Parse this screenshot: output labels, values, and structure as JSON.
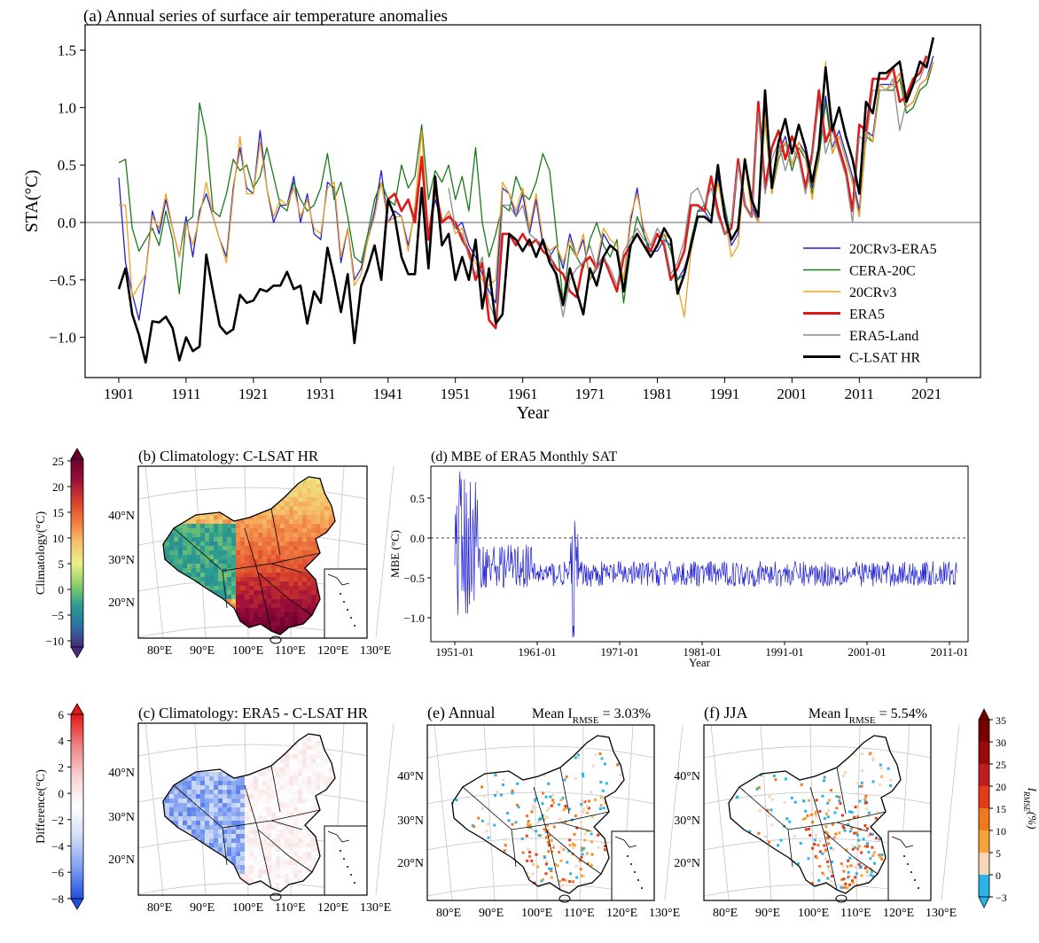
{
  "chart_data": [
    {
      "id": "a",
      "type": "line",
      "title": "(a) Annual series of surface air temperature anomalies",
      "xlabel": "Year",
      "ylabel": "STA(°C)",
      "xlim": [
        1896,
        2029
      ],
      "ylim": [
        -1.35,
        1.72
      ],
      "x_ticks": [
        "1901",
        "1911",
        "1921",
        "1931",
        "1941",
        "1951",
        "1961",
        "1971",
        "1981",
        "1991",
        "2001",
        "2011",
        "2021"
      ],
      "y_ticks": [
        "−1.0",
        "−0.5",
        "0.0",
        "0.5",
        "1.0",
        "1.5"
      ],
      "legend_position": "lower-right",
      "series": [
        {
          "name": "20CRv3-ERA5",
          "color": "#1f1fd6",
          "start": 1901,
          "values": [
            0.39,
            -0.35,
            -0.62,
            -0.85,
            -0.45,
            0.1,
            -0.1,
            0.2,
            -0.05,
            -0.3,
            0.05,
            -0.3,
            0.1,
            0.25,
            0.05,
            -0.15,
            -0.3,
            0.3,
            0.65,
            0.3,
            0.25,
            0.8,
            0.3,
            0.0,
            0.15,
            0.15,
            0.4,
            0.0,
            0.25,
            -0.1,
            -0.15,
            0.35,
            0.3,
            -0.35,
            -0.05,
            -0.5,
            -0.4,
            -0.15,
            0.1,
            0.45,
            0.0,
            0.1,
            0.05,
            -0.2,
            0.1,
            0.55,
            -0.1,
            0.2,
            0.0,
            0.1,
            -0.05,
            0.0,
            -0.2,
            -0.3,
            -0.45,
            -0.6,
            -0.7,
            0.3,
            0.25,
            0.05,
            0.25,
            -0.1,
            0.2,
            -0.2,
            -0.3,
            -0.2,
            -0.4,
            -0.1,
            -0.3,
            -0.15,
            -0.5,
            -0.4,
            -0.1,
            -0.2,
            -0.25,
            -0.5,
            0.0,
            0.3,
            -0.1,
            -0.25,
            -0.25,
            -0.15,
            -0.2,
            -0.5,
            -0.4,
            -0.2,
            0.1,
            0.1,
            0.0,
            0.4,
            0.1,
            -0.2,
            -0.1,
            0.55,
            0.15,
            0.0,
            1.0,
            0.3,
            0.6,
            0.75,
            0.5,
            0.7,
            0.6,
            0.3,
            0.6,
            1.1,
            0.65,
            0.8,
            0.6,
            0.4,
            0.1,
            0.8,
            0.75,
            1.2,
            1.2,
            1.2,
            1.3,
            1.0,
            1.05,
            1.2,
            1.25,
            1.45
          ]
        },
        {
          "name": "CERA-20C",
          "color": "#1a7a1a",
          "start": 1901,
          "values": [
            0.52,
            0.55,
            -0.05,
            -0.25,
            -0.15,
            -0.05,
            -0.2,
            0.1,
            -0.15,
            -0.62,
            0.0,
            0.05,
            1.04,
            0.75,
            0.1,
            0.05,
            0.25,
            0.55,
            0.45,
            0.5,
            0.3,
            0.4,
            0.65,
            0.4,
            0.15,
            0.1,
            0.35,
            0.2,
            0.1,
            0.15,
            0.3,
            0.6,
            0.2,
            0.35,
            0.05,
            -0.3,
            -0.35,
            -0.1,
            0.2,
            0.35,
            0.2,
            0.15,
            0.5,
            0.3,
            0.4,
            0.85,
            0.2,
            0.45,
            0.35,
            0.5,
            0.2,
            0.4,
            0.1,
            0.65,
            0.0,
            -0.3,
            -0.1,
            0.15,
            0.1,
            0.4,
            0.25,
            0.2,
            0.35,
            0.6,
            0.45,
            -0.1,
            -0.7,
            -0.2,
            -0.3,
            -0.4,
            -0.15,
            0.0,
            -0.2,
            -0.3,
            -0.15,
            -0.7,
            -0.25,
            0.05,
            -0.1,
            -0.3,
            -0.2,
            -0.1,
            -0.25,
            -0.5,
            -0.45,
            -0.15,
            0.1,
            0.15,
            0.05,
            0.45,
            0.15,
            -0.15,
            -0.05,
            0.5,
            0.2,
            0.05,
            0.9,
            0.25,
            0.55,
            0.7,
            0.45,
            0.65,
            0.55,
            0.25,
            0.55,
            1.05,
            0.6,
            0.75,
            0.55,
            0.35,
            0.05,
            0.75,
            0.7,
            1.15,
            1.15,
            1.15,
            1.25,
            0.95,
            1.0,
            1.15,
            1.2,
            1.4
          ]
        },
        {
          "name": "20CRv3",
          "color": "#f0a020",
          "start": 1901,
          "values": [
            0.15,
            0.15,
            -0.65,
            -0.55,
            -0.45,
            0.05,
            -0.05,
            0.25,
            -0.05,
            -0.3,
            0.0,
            -0.2,
            0.05,
            0.35,
            0.05,
            -0.15,
            -0.35,
            0.25,
            0.75,
            0.25,
            0.25,
            0.7,
            0.3,
            0.05,
            0.2,
            0.15,
            0.3,
            0.05,
            0.2,
            -0.05,
            -0.1,
            0.3,
            0.35,
            -0.3,
            -0.05,
            -0.55,
            -0.45,
            -0.15,
            0.05,
            0.35,
            0.0,
            0.05,
            0.05,
            -0.25,
            0.15,
            0.8,
            -0.15,
            0.25,
            0.0,
            0.1,
            -0.1,
            -0.05,
            -0.25,
            -0.35,
            -0.5,
            -0.55,
            -0.5,
            0.35,
            0.25,
            0.1,
            0.3,
            -0.05,
            0.25,
            -0.15,
            -0.25,
            -0.2,
            -0.35,
            -0.15,
            -0.3,
            -0.1,
            -0.5,
            -0.35,
            -0.05,
            -0.15,
            -0.2,
            -0.5,
            0.05,
            0.25,
            -0.05,
            -0.2,
            -0.2,
            -0.1,
            -0.15,
            -0.55,
            -0.82,
            -0.25,
            0.05,
            0.05,
            0.0,
            0.35,
            0.05,
            -0.3,
            -0.2,
            0.5,
            0.1,
            0.0,
            0.95,
            0.25,
            0.6,
            0.7,
            0.5,
            0.7,
            0.55,
            0.2,
            0.6,
            1.4,
            0.6,
            0.75,
            0.55,
            0.35,
            0.05,
            0.8,
            0.7,
            1.2,
            1.15,
            1.2,
            1.3,
            1.0,
            1.05,
            1.2,
            1.25,
            1.4
          ]
        },
        {
          "name": "ERA5",
          "color": "#e01818",
          "start": 1940,
          "values": [
            -0.47,
            0.2,
            0.25,
            0.1,
            0.2,
            0.0,
            0.57,
            -0.15,
            0.3,
            0.0,
            0.05,
            0.0,
            -0.15,
            -0.25,
            -0.5,
            -0.35,
            -0.85,
            -0.92,
            -0.1,
            -0.1,
            -0.2,
            -0.1,
            -0.2,
            -0.15,
            -0.25,
            -0.3,
            -0.4,
            -0.45,
            -0.6,
            -0.65,
            -0.35,
            -0.3,
            -0.4,
            -0.3,
            -0.45,
            -0.6,
            -0.3,
            -0.2,
            -0.1,
            -0.2,
            -0.25,
            -0.1,
            -0.2,
            -0.5,
            -0.4,
            -0.25,
            0.15,
            0.15,
            0.1,
            0.4,
            0.1,
            -0.1,
            -0.05,
            0.55,
            0.15,
            0.05,
            1.05,
            0.3,
            0.65,
            0.8,
            0.55,
            0.75,
            0.6,
            0.3,
            0.6,
            1.15,
            0.7,
            0.85,
            0.65,
            0.45,
            0.1,
            0.85,
            0.8,
            1.25,
            1.25,
            1.25,
            1.35,
            1.05,
            1.1,
            1.25,
            1.3,
            1.45
          ]
        },
        {
          "name": "ERA5-Land",
          "color": "#8c8c8c",
          "start": 1950,
          "values": [
            0.3,
            -0.05,
            -0.1,
            -0.3,
            -0.45,
            -0.3,
            -0.7,
            -0.85,
            0.15,
            0.15,
            0.05,
            0.15,
            -0.1,
            -0.15,
            -0.2,
            -0.25,
            -0.5,
            -0.82,
            -0.5,
            -0.4,
            -0.35,
            -0.2,
            -0.4,
            -0.3,
            -0.4,
            -0.55,
            -0.25,
            -0.15,
            -0.05,
            -0.15,
            -0.2,
            -0.05,
            -0.15,
            -0.45,
            -0.35,
            -0.15,
            0.25,
            0.3,
            0.15,
            0.3,
            0.05,
            -0.1,
            0.0,
            0.5,
            0.15,
            0.05,
            0.95,
            0.25,
            0.55,
            0.7,
            0.45,
            0.65,
            0.55,
            0.25,
            0.55,
            1.05,
            0.6,
            0.8,
            0.6,
            0.4,
            0.0,
            0.75,
            0.7,
            1.15,
            1.15,
            1.15,
            1.25,
            0.8,
            1.05,
            1.2,
            1.25,
            1.4
          ]
        },
        {
          "name": "C-LSAT HR",
          "color": "#000000",
          "start": 1901,
          "values": [
            -0.58,
            -0.4,
            -0.8,
            -0.98,
            -1.22,
            -0.86,
            -0.87,
            -0.82,
            -0.92,
            -1.2,
            -1.0,
            -1.12,
            -1.08,
            -0.28,
            -0.6,
            -0.9,
            -0.97,
            -0.93,
            -0.63,
            -0.7,
            -0.68,
            -0.58,
            -0.6,
            -0.55,
            -0.55,
            -0.43,
            -0.58,
            -0.55,
            -0.88,
            -0.6,
            -0.7,
            -0.22,
            -0.48,
            -0.78,
            -0.45,
            -1.05,
            -0.55,
            -0.4,
            -0.2,
            -0.5,
            0.2,
            0.05,
            -0.3,
            -0.45,
            -0.45,
            0.3,
            -0.4,
            0.4,
            -0.2,
            -0.1,
            -0.5,
            -0.3,
            -0.5,
            -0.15,
            -0.75,
            -0.4,
            -0.88,
            -0.8,
            -0.1,
            -0.15,
            -0.25,
            -0.15,
            -0.3,
            -0.15,
            -0.35,
            -0.45,
            -0.72,
            -0.4,
            -0.6,
            -0.8,
            -0.4,
            -0.55,
            -0.3,
            -0.2,
            -0.25,
            -0.6,
            -0.2,
            -0.1,
            -0.2,
            -0.3,
            -0.2,
            -0.05,
            -0.15,
            -0.62,
            -0.45,
            -0.2,
            0.05,
            0.05,
            0.0,
            0.5,
            0.05,
            -0.15,
            -0.05,
            0.55,
            0.2,
            0.05,
            1.15,
            0.3,
            0.7,
            0.9,
            0.6,
            0.85,
            0.65,
            0.35,
            0.65,
            1.35,
            0.8,
            1.0,
            0.75,
            0.55,
            0.25,
            1.05,
            0.95,
            1.3,
            1.3,
            1.35,
            1.4,
            1.05,
            1.2,
            1.4,
            1.35,
            1.61
          ]
        }
      ]
    },
    {
      "id": "b",
      "type": "heatmap",
      "title": "(b) Climatology: C-LSAT HR",
      "colorbar_label": "Climatology(°C)",
      "colorbar_ticks": [
        "25",
        "20",
        "15",
        "10",
        "5",
        "0",
        "−5",
        "−10"
      ],
      "colorbar_range": [
        -12,
        25
      ],
      "lon_ticks": [
        "80°E",
        "90°E",
        "100°E",
        "110°E",
        "120°E",
        "130°E"
      ],
      "lat_ticks": [
        "40°N",
        "30°N",
        "20°N"
      ],
      "colors": [
        "#4a2a7a",
        "#2e6fa0",
        "#2a9d8f",
        "#8fcf6a",
        "#e9f08a",
        "#f6c26b",
        "#f07a40",
        "#d53e2a",
        "#9b0f3a",
        "#6b0030"
      ]
    },
    {
      "id": "d",
      "type": "line",
      "title": "(d) MBE of ERA5 Monthly SAT",
      "xlabel": "Year",
      "ylabel": "MBE (°C)",
      "x_ticks": [
        "1951-01",
        "1961-01",
        "1971-01",
        "1981-01",
        "1991-01",
        "2001-01",
        "2011-01"
      ],
      "y_ticks": [
        "0.5",
        "0.0",
        "−0.5",
        "−1.0"
      ],
      "ylim": [
        -1.3,
        0.9
      ],
      "color": "#1f1fd6",
      "months": 880,
      "typical_value": -0.45
    },
    {
      "id": "c",
      "type": "heatmap",
      "title": "(c) Climatology: ERA5 - C-LSAT HR",
      "colorbar_label": "Difference(°C)",
      "colorbar_ticks": [
        "6",
        "4",
        "2",
        "0",
        "−2",
        "−4",
        "−6",
        "−8"
      ],
      "colorbar_range": [
        -8,
        6
      ],
      "lon_ticks": [
        "80°E",
        "90°E",
        "100°E",
        "110°E",
        "120°E",
        "130°E"
      ],
      "lat_ticks": [
        "40°N",
        "30°N",
        "20°N"
      ],
      "colors": [
        "#1f4fe0",
        "#7e9ef0",
        "#d0dcf6",
        "#ffffff",
        "#f6d0d0",
        "#f08080",
        "#e01818"
      ]
    },
    {
      "id": "e",
      "type": "scatter",
      "title": "(e) Annual",
      "stat_prefix": "Mean I",
      "stat_sub": "RMSE",
      "stat_value": " = 3.03%",
      "lon_ticks": [
        "80°E",
        "90°E",
        "100°E",
        "110°E",
        "120°E",
        "130°E"
      ],
      "lat_ticks": [
        "40°N",
        "30°N",
        "20°N"
      ]
    },
    {
      "id": "f",
      "type": "scatter",
      "title": "(f) JJA",
      "stat_prefix": "Mean I",
      "stat_sub": "RMSE",
      "stat_value": " = 5.54%",
      "lon_ticks": [
        "80°E",
        "90°E",
        "100°E",
        "110°E",
        "120°E",
        "130°E"
      ],
      "lat_ticks": [
        "40°N",
        "30°N",
        "20°N"
      ],
      "colorbar_label": "I",
      "colorbar_label_sub": "RMSE",
      "colorbar_label_suffix": "(%)",
      "colorbar_ticks": [
        "35",
        "30",
        "25",
        "20",
        "15",
        "10",
        "5",
        "0",
        "−3"
      ],
      "bins": [
        {
          "color": "#7a0000"
        },
        {
          "color": "#9b0a0a"
        },
        {
          "color": "#c01e1e"
        },
        {
          "color": "#e63a1a"
        },
        {
          "color": "#f2781e"
        },
        {
          "color": "#f7a23a"
        },
        {
          "color": "#f6d6b8"
        },
        {
          "color": "#2ab4e8"
        }
      ]
    }
  ]
}
